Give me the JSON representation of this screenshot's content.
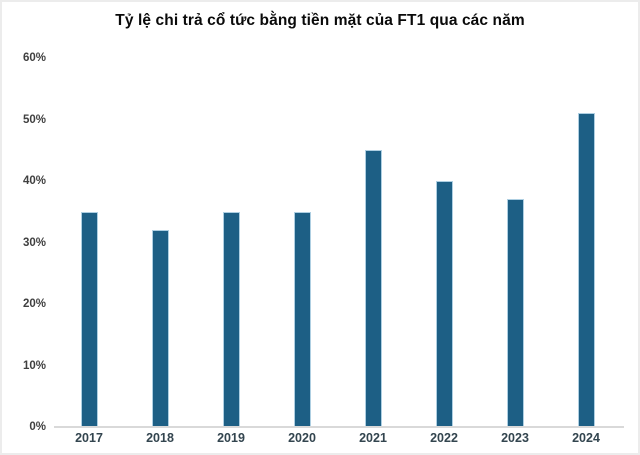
{
  "chart_data": {
    "type": "bar",
    "title": "Tỷ lệ chi trả cổ tức bằng tiền mặt của FT1 qua các năm",
    "categories": [
      "2017",
      "2018",
      "2019",
      "2020",
      "2021",
      "2022",
      "2023",
      "2024"
    ],
    "values": [
      35,
      32,
      35,
      35,
      45,
      40,
      37,
      51
    ],
    "unit": "%",
    "xlabel": "",
    "ylabel": "",
    "ylim": [
      0,
      60
    ],
    "ytick_step": 10,
    "ytick_labels": [
      "0%",
      "10%",
      "20%",
      "30%",
      "40%",
      "50%",
      "60%"
    ],
    "grid": false,
    "legend": "none",
    "colors": {
      "bar_fill": "#1d5f85",
      "bar_edge": "#aecfe2",
      "axis_line": "#d9d9d9",
      "ytick_label": "#404040",
      "xtick_label": "#33454f",
      "title": "#0a0a0a",
      "background": "#ffffff",
      "frame_edge": "#ececec"
    }
  }
}
